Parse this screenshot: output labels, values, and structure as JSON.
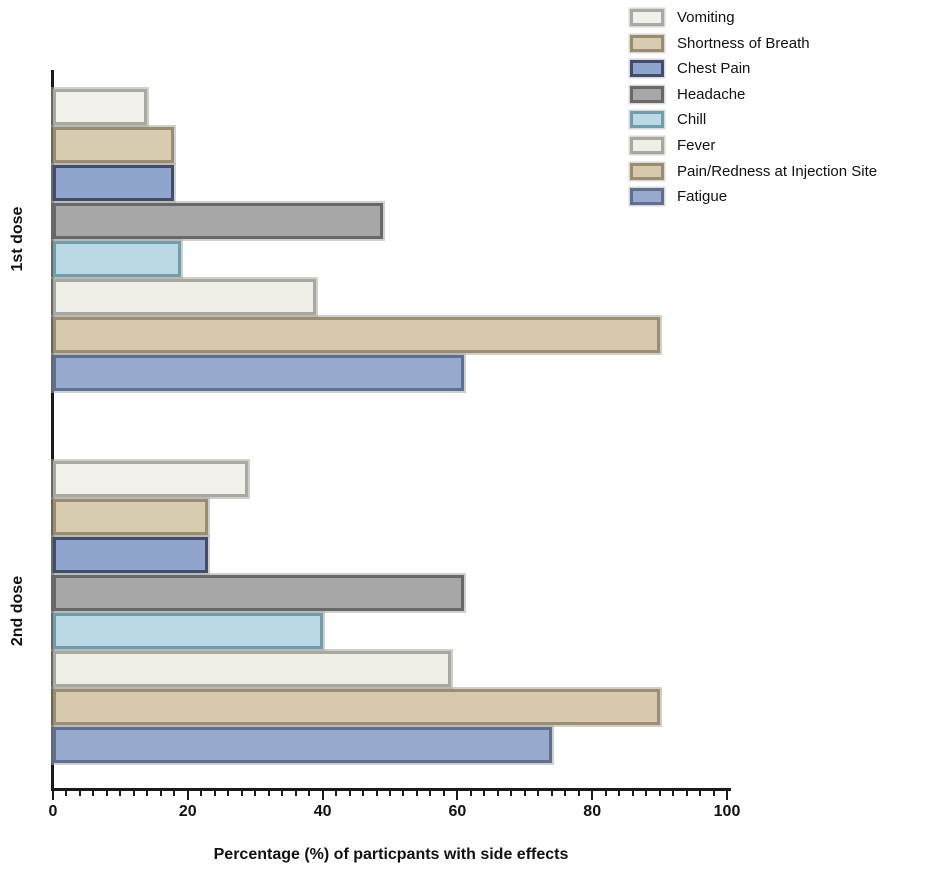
{
  "figure": {
    "title": ""
  },
  "chart_data": {
    "type": "bar",
    "orientation": "horizontal",
    "title": "",
    "xlabel": "Percentage (%) of particpants with side effects",
    "ylabel": "",
    "xlim": [
      0,
      100
    ],
    "x_major_ticks": [
      0,
      20,
      40,
      60,
      80,
      100
    ],
    "x_minor_tick_step": 2,
    "grid": false,
    "legend_position": "top-right",
    "categories": [
      "1st dose",
      "2nd dose"
    ],
    "series": [
      {
        "name": "Vomiting",
        "values": [
          14,
          29
        ],
        "fill": "#f1f0ea",
        "border": "#a9a9a1"
      },
      {
        "name": "Shortness of Breath",
        "values": [
          18,
          23
        ],
        "fill": "#d7cbb0",
        "border": "#9a8c6e"
      },
      {
        "name": "Chest Pain",
        "values": [
          18,
          23
        ],
        "fill": "#90a5cd",
        "border": "#414d6b"
      },
      {
        "name": "Headache",
        "values": [
          49,
          61
        ],
        "fill": "#a7a7a7",
        "border": "#686868"
      },
      {
        "name": "Chill",
        "values": [
          19,
          40
        ],
        "fill": "#bad9e4",
        "border": "#6f9dac"
      },
      {
        "name": "Fever",
        "values": [
          39,
          59
        ],
        "fill": "#efeee7",
        "border": "#a9a8a0"
      },
      {
        "name": "Pain/Redness at Injection Site",
        "values": [
          90,
          90
        ],
        "fill": "#d6c9ad",
        "border": "#9b8d6f"
      },
      {
        "name": "Fatigue",
        "values": [
          61,
          74
        ],
        "fill": "#96aace",
        "border": "#5f6e93"
      }
    ],
    "series_order": "top-to-bottom within each dose group, matching legend order",
    "axis_color": "#1a1a1a"
  }
}
